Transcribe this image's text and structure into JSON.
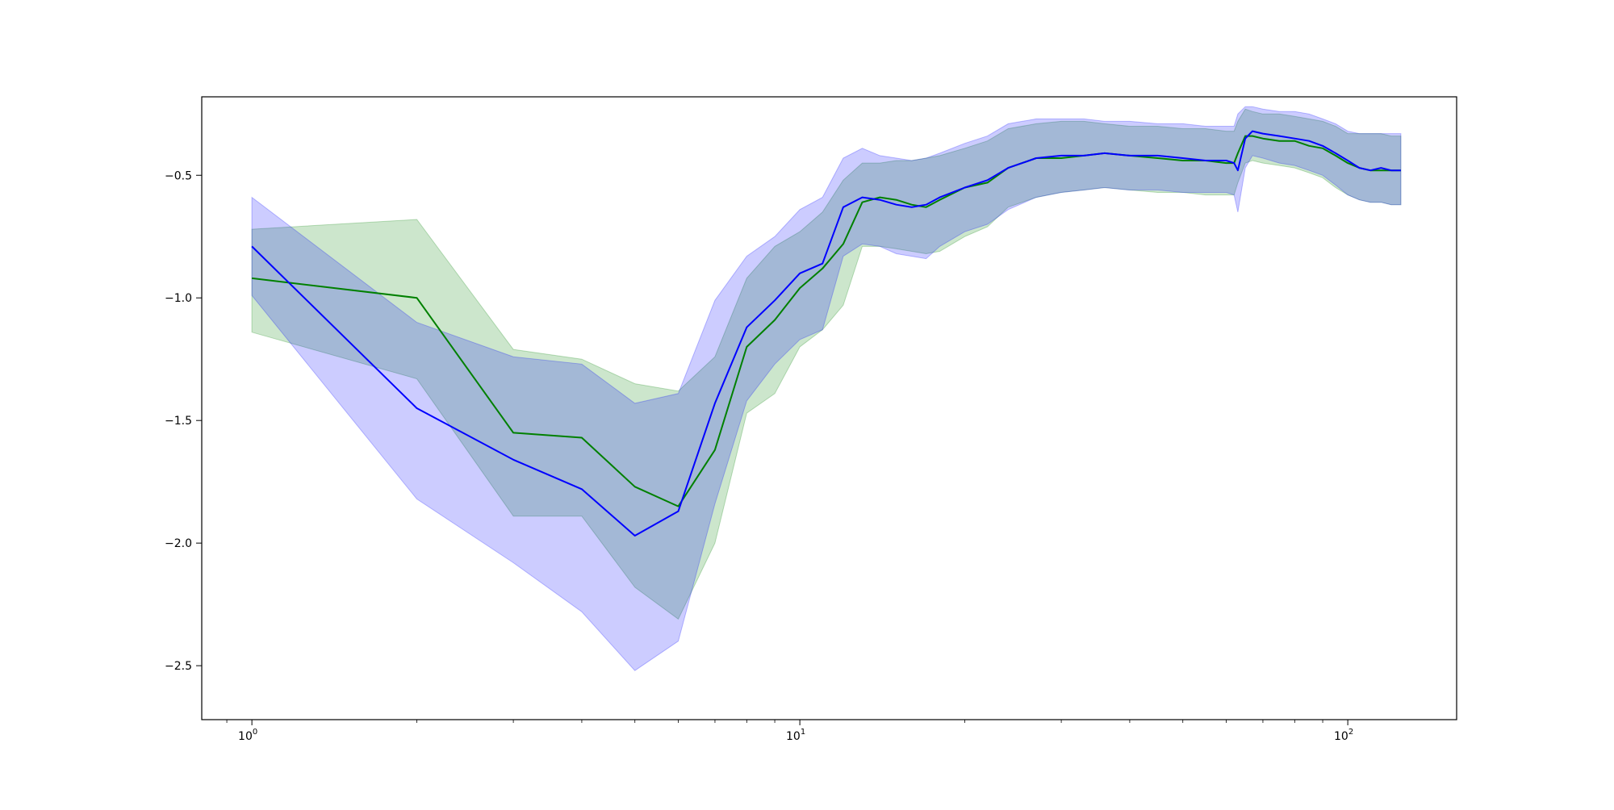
{
  "chart_data": {
    "type": "line",
    "title": "",
    "xlabel": "",
    "ylabel": "",
    "xscale": "log",
    "xlim": [
      0.81,
      158
    ],
    "ylim": [
      -2.72,
      -0.18
    ],
    "grid": false,
    "legend": "none",
    "x_ticks": [
      {
        "value": 1,
        "label": "10",
        "exp": "0"
      },
      {
        "value": 10,
        "label": "10",
        "exp": "1"
      },
      {
        "value": 100,
        "label": "10",
        "exp": "2"
      }
    ],
    "y_ticks": [
      {
        "value": -0.5,
        "label": "−0.5"
      },
      {
        "value": -1.0,
        "label": "−1.0"
      },
      {
        "value": -1.5,
        "label": "−1.5"
      },
      {
        "value": -2.0,
        "label": "−2.0"
      },
      {
        "value": -2.5,
        "label": "−2.5"
      }
    ],
    "x": [
      1,
      2,
      3,
      4,
      5,
      6,
      7,
      8,
      9,
      10,
      11,
      12,
      13,
      14,
      15,
      16,
      17,
      18,
      20,
      22,
      24,
      27,
      30,
      33,
      36,
      40,
      45,
      50,
      55,
      60,
      62,
      63,
      65,
      67,
      70,
      75,
      80,
      85,
      90,
      95,
      100,
      105,
      110,
      115,
      120,
      125
    ],
    "series": [
      {
        "color": "#008000",
        "band_color": "#008000",
        "band_opacity": 0.2,
        "values": [
          -0.92,
          -1.0,
          -1.55,
          -1.57,
          -1.77,
          -1.85,
          -1.62,
          -1.2,
          -1.09,
          -0.96,
          -0.88,
          -0.78,
          -0.61,
          -0.59,
          -0.6,
          -0.62,
          -0.63,
          -0.6,
          -0.55,
          -0.53,
          -0.47,
          -0.43,
          -0.43,
          -0.42,
          -0.41,
          -0.42,
          -0.43,
          -0.44,
          -0.44,
          -0.45,
          -0.45,
          -0.41,
          -0.34,
          -0.34,
          -0.35,
          -0.36,
          -0.36,
          -0.38,
          -0.39,
          -0.42,
          -0.45,
          -0.47,
          -0.48,
          -0.48,
          -0.48,
          -0.48
        ],
        "upper": [
          -0.72,
          -0.68,
          -1.21,
          -1.25,
          -1.35,
          -1.38,
          -1.24,
          -0.92,
          -0.79,
          -0.73,
          -0.65,
          -0.52,
          -0.45,
          -0.45,
          -0.44,
          -0.44,
          -0.43,
          -0.42,
          -0.39,
          -0.36,
          -0.31,
          -0.29,
          -0.28,
          -0.28,
          -0.29,
          -0.3,
          -0.3,
          -0.31,
          -0.31,
          -0.32,
          -0.32,
          -0.28,
          -0.23,
          -0.24,
          -0.25,
          -0.25,
          -0.26,
          -0.27,
          -0.28,
          -0.3,
          -0.33,
          -0.33,
          -0.33,
          -0.33,
          -0.34,
          -0.34
        ],
        "lower": [
          -1.14,
          -1.33,
          -1.89,
          -1.89,
          -2.18,
          -2.31,
          -2.0,
          -1.47,
          -1.39,
          -1.2,
          -1.13,
          -1.03,
          -0.79,
          -0.79,
          -0.8,
          -0.81,
          -0.82,
          -0.81,
          -0.75,
          -0.71,
          -0.63,
          -0.59,
          -0.57,
          -0.56,
          -0.55,
          -0.56,
          -0.57,
          -0.57,
          -0.58,
          -0.58,
          -0.58,
          -0.53,
          -0.45,
          -0.44,
          -0.45,
          -0.46,
          -0.47,
          -0.49,
          -0.51,
          -0.55,
          -0.58,
          -0.6,
          -0.61,
          -0.61,
          -0.62,
          -0.62
        ]
      },
      {
        "color": "#0000ff",
        "band_color": "#0000ff",
        "band_opacity": 0.2,
        "values": [
          -0.79,
          -1.45,
          -1.66,
          -1.78,
          -1.97,
          -1.87,
          -1.43,
          -1.12,
          -1.01,
          -0.9,
          -0.86,
          -0.63,
          -0.59,
          -0.6,
          -0.62,
          -0.63,
          -0.62,
          -0.59,
          -0.55,
          -0.52,
          -0.47,
          -0.43,
          -0.42,
          -0.42,
          -0.41,
          -0.42,
          -0.42,
          -0.43,
          -0.44,
          -0.44,
          -0.45,
          -0.48,
          -0.35,
          -0.32,
          -0.33,
          -0.34,
          -0.35,
          -0.36,
          -0.38,
          -0.41,
          -0.44,
          -0.47,
          -0.48,
          -0.47,
          -0.48,
          -0.48
        ],
        "upper": [
          -0.59,
          -1.1,
          -1.24,
          -1.27,
          -1.43,
          -1.39,
          -1.01,
          -0.83,
          -0.75,
          -0.64,
          -0.59,
          -0.43,
          -0.39,
          -0.42,
          -0.43,
          -0.44,
          -0.43,
          -0.41,
          -0.37,
          -0.34,
          -0.29,
          -0.27,
          -0.27,
          -0.27,
          -0.28,
          -0.28,
          -0.29,
          -0.29,
          -0.3,
          -0.3,
          -0.3,
          -0.25,
          -0.22,
          -0.22,
          -0.23,
          -0.24,
          -0.24,
          -0.25,
          -0.27,
          -0.29,
          -0.32,
          -0.33,
          -0.33,
          -0.33,
          -0.33,
          -0.33
        ],
        "lower": [
          -0.99,
          -1.82,
          -2.08,
          -2.28,
          -2.52,
          -2.4,
          -1.84,
          -1.42,
          -1.27,
          -1.17,
          -1.13,
          -0.83,
          -0.78,
          -0.79,
          -0.82,
          -0.83,
          -0.84,
          -0.79,
          -0.73,
          -0.7,
          -0.64,
          -0.59,
          -0.57,
          -0.56,
          -0.55,
          -0.56,
          -0.56,
          -0.57,
          -0.57,
          -0.57,
          -0.58,
          -0.65,
          -0.47,
          -0.42,
          -0.43,
          -0.45,
          -0.46,
          -0.48,
          -0.5,
          -0.54,
          -0.58,
          -0.6,
          -0.61,
          -0.61,
          -0.62,
          -0.62
        ]
      }
    ]
  }
}
